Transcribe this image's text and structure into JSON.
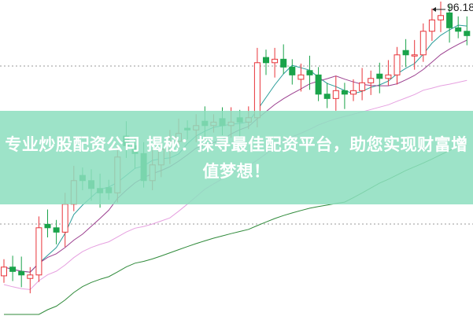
{
  "banner": {
    "title": "专业炒股配资公司 揭秘：探寻最佳配资平台，助您实现财富增值梦想！"
  },
  "chart_data": {
    "type": "candlestick",
    "title": "",
    "max_price_label": "96.18",
    "up_color": "#e8343a",
    "down_color": "#1aa34a",
    "ma_colors": [
      "#2a9d9a",
      "#9b3f8f",
      "#e6a0e0",
      "#2f8a3a"
    ],
    "grid": "dashed horizontal",
    "candles_open_close": [
      [
        65.5,
        66.5
      ],
      [
        66.5,
        66.0
      ],
      [
        66.0,
        65.6
      ],
      [
        65.2,
        65.6
      ],
      [
        65.6,
        71.0
      ],
      [
        71.4,
        71.0
      ],
      [
        71.0,
        70.5
      ],
      [
        70.5,
        73.7
      ],
      [
        73.7,
        76.4
      ],
      [
        77.0,
        76.4
      ],
      [
        76.4,
        75.5
      ],
      [
        75.5,
        75.0
      ],
      [
        75.6,
        75.0
      ],
      [
        75.0,
        79.1
      ],
      [
        81.5,
        80.4
      ],
      [
        80.4,
        79.5
      ],
      [
        79.5,
        76.4
      ],
      [
        76.4,
        78.2
      ],
      [
        78.2,
        80.0
      ],
      [
        80.0,
        80.9
      ],
      [
        80.9,
        81.8
      ],
      [
        82.4,
        82.2
      ],
      [
        82.2,
        82.7
      ],
      [
        83.2,
        82.7
      ],
      [
        82.7,
        83.1
      ],
      [
        83.5,
        82.7
      ],
      [
        82.7,
        83.1
      ],
      [
        83.6,
        83.1
      ],
      [
        83.1,
        83.6
      ],
      [
        83.6,
        89.9
      ],
      [
        90.5,
        89.9
      ],
      [
        89.9,
        90.3
      ],
      [
        90.3,
        89.4
      ],
      [
        89.4,
        88.5
      ],
      [
        88.0,
        88.5
      ],
      [
        89.0,
        88.5
      ],
      [
        88.5,
        86.3
      ],
      [
        86.3,
        85.8
      ],
      [
        85.8,
        86.7
      ],
      [
        86.7,
        86.3
      ],
      [
        86.3,
        86.7
      ],
      [
        86.7,
        87.6
      ],
      [
        87.6,
        88.1
      ],
      [
        88.6,
        88.1
      ],
      [
        88.1,
        88.5
      ],
      [
        88.5,
        90.8
      ],
      [
        91.3,
        90.8
      ],
      [
        90.8,
        90.8
      ],
      [
        90.8,
        93.5
      ],
      [
        93.5,
        94.8
      ],
      [
        94.8,
        95.3
      ],
      [
        95.6,
        93.9
      ],
      [
        93.9,
        93.5
      ],
      [
        93.5,
        93.0
      ]
    ]
  }
}
